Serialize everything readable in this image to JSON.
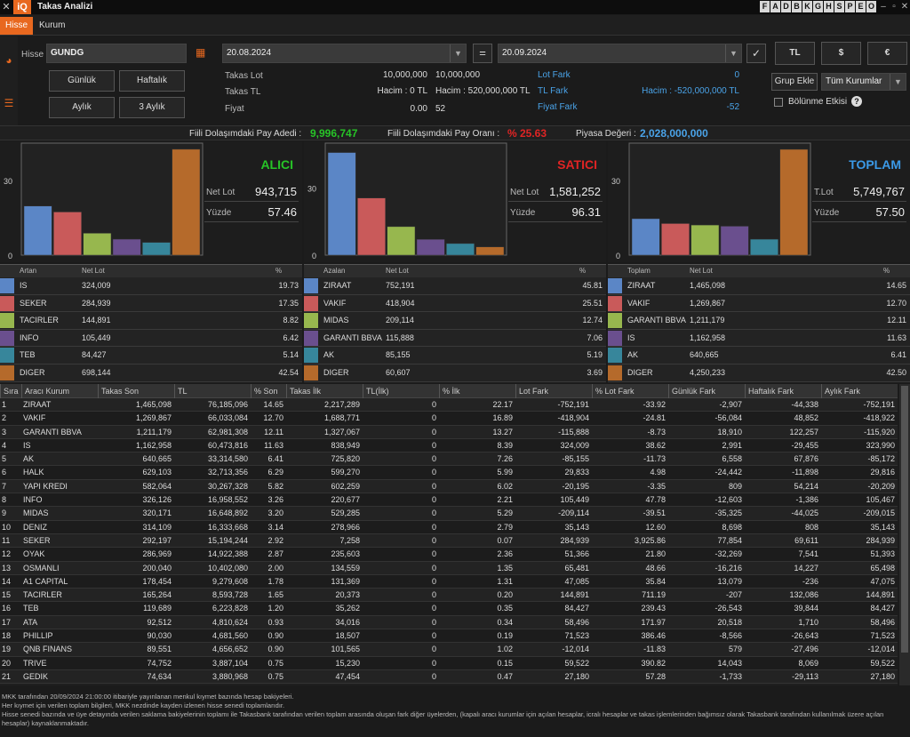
{
  "window": {
    "title": "Takas Analizi",
    "close": "✕",
    "logo": "iQ",
    "letters": [
      "F",
      "A",
      "D",
      "B",
      "K",
      "G",
      "H",
      "S",
      "P",
      "E",
      "O"
    ]
  },
  "tabs": [
    "Hisse",
    "Kurum"
  ],
  "form": {
    "hisse_label": "Hisse",
    "hisse_value": "GUNDG",
    "date_from": "20.08.2024",
    "date_to": "20.09.2024",
    "equals": "=",
    "check": "✓",
    "cur_tl": "TL",
    "cur_usd": "$",
    "cur_eur": "€"
  },
  "period_buttons": [
    "Günlük",
    "Haftalık",
    "Aylık",
    "3 Aylık"
  ],
  "summary": {
    "takas_lot_label": "Takas Lot",
    "takas_tl_label": "Takas TL",
    "fiyat_label": "Fiyat",
    "lot_v1": "10,000,000",
    "lot_v2": "10,000,000",
    "hacim1": "Hacim : 0 TL",
    "hacim2": "Hacim : 520,000,000 TL",
    "fiyat1": "0.00",
    "fiyat2": "52",
    "lot_fark_label": "Lot Fark",
    "lot_fark": "0",
    "tl_fark_label": "TL Fark",
    "tl_fark": "Hacim : -520,000,000 TL",
    "fiyat_fark_label": "Fiyat Fark",
    "fiyat_fark": "-52"
  },
  "right_controls": {
    "grup_ekle": "Grup Ekle",
    "kurum_select": "Tüm Kurumlar",
    "bolunme": "Bölünme Etkisi"
  },
  "stats": {
    "pay_adedi_label": "Fiili Dolaşımdaki Pay Adedi :",
    "pay_adedi": "9,996,747",
    "pay_orani_label": "Fiili Dolaşımdaki Pay Oranı :",
    "pay_orani": "% 25.63",
    "piyasa_label": "Piyasa Değeri :",
    "piyasa": "2,028,000,000"
  },
  "colors": {
    "accent": "#e8681f",
    "green": "#27c427",
    "red": "#e02424",
    "blue": "#3b9ae8",
    "palette": [
      "#5b86c6",
      "#c95a5a",
      "#97b74e",
      "#6a4f8e",
      "#37869b",
      "#b56a2b"
    ]
  },
  "chart_data": [
    {
      "type": "bar",
      "title": "ALICI",
      "categories": [
        "IS",
        "SEKER",
        "TACIRLER",
        "INFO",
        "TEB",
        "DIGER"
      ],
      "values": [
        19.73,
        17.35,
        8.82,
        6.42,
        5.14,
        42.54
      ],
      "ylim": [
        0,
        45
      ],
      "yticks": [
        "30",
        "0"
      ],
      "stat1_label": "Net Lot",
      "stat1": "943,715",
      "stat2_label": "Yüzde",
      "stat2": "57.46"
    },
    {
      "type": "bar",
      "title": "SATICI",
      "categories": [
        "ZIRAAT",
        "VAKIF",
        "MIDAS",
        "GARANTI BBVA",
        "AK",
        "DIGER"
      ],
      "values": [
        45.81,
        25.51,
        12.74,
        7.06,
        5.19,
        3.69
      ],
      "ylim": [
        0,
        50
      ],
      "yticks": [
        "30",
        "0"
      ],
      "stat1_label": "Net Lot",
      "stat1": "1,581,252",
      "stat2_label": "Yüzde",
      "stat2": "96.31"
    },
    {
      "type": "bar",
      "title": "TOPLAM",
      "categories": [
        "ZIRAAT",
        "VAKIF",
        "GARANTI BBVA",
        "IS",
        "AK",
        "DIGER"
      ],
      "values": [
        14.65,
        12.7,
        12.11,
        11.63,
        6.41,
        42.5
      ],
      "ylim": [
        0,
        45
      ],
      "yticks": [
        "30",
        "0"
      ],
      "stat1_label": "T.Lot",
      "stat1": "5,749,767",
      "stat2_label": "Yüzde",
      "stat2": "57.50"
    }
  ],
  "small_tables": [
    {
      "h1": "Artan",
      "h2": "Net Lot",
      "h3": "%",
      "rows": [
        [
          "IS",
          "324,009",
          "19.73"
        ],
        [
          "SEKER",
          "284,939",
          "17.35"
        ],
        [
          "TACIRLER",
          "144,891",
          "8.82"
        ],
        [
          "INFO",
          "105,449",
          "6.42"
        ],
        [
          "TEB",
          "84,427",
          "5.14"
        ],
        [
          "DIGER",
          "698,144",
          "42.54"
        ]
      ]
    },
    {
      "h1": "Azalan",
      "h2": "Net Lot",
      "h3": "%",
      "rows": [
        [
          "ZIRAAT",
          "752,191",
          "45.81"
        ],
        [
          "VAKIF",
          "418,904",
          "25.51"
        ],
        [
          "MIDAS",
          "209,114",
          "12.74"
        ],
        [
          "GARANTI BBVA",
          "115,888",
          "7.06"
        ],
        [
          "AK",
          "85,155",
          "5.19"
        ],
        [
          "DIGER",
          "60,607",
          "3.69"
        ]
      ]
    },
    {
      "h1": "Toplam",
      "h2": "Net Lot",
      "h3": "%",
      "rows": [
        [
          "ZIRAAT",
          "1,465,098",
          "14.65"
        ],
        [
          "VAKIF",
          "1,269,867",
          "12.70"
        ],
        [
          "GARANTI BBVA",
          "1,211,179",
          "12.11"
        ],
        [
          "IS",
          "1,162,958",
          "11.63"
        ],
        [
          "AK",
          "640,665",
          "6.41"
        ],
        [
          "DIGER",
          "4,250,233",
          "42.50"
        ]
      ]
    }
  ],
  "main_table": {
    "headers": [
      "Sıra",
      "Aracı Kurum",
      "Takas Son",
      "TL",
      "% Son",
      "Takas İlk",
      "TL(İlk)",
      "% İlk",
      "Lot Fark",
      "% Lot Fark",
      "Günlük Fark",
      "Haftalık Fark",
      "Aylık Fark"
    ],
    "rows": [
      [
        "1",
        "ZIRAAT",
        "1,465,098",
        "76,185,096",
        "14.65",
        "2,217,289",
        "0",
        "22.17",
        "-752,191",
        "-33.92",
        "-2,907",
        "-44,338",
        "-752,191"
      ],
      [
        "2",
        "VAKIF",
        "1,269,867",
        "66,033,084",
        "12.70",
        "1,688,771",
        "0",
        "16.89",
        "-418,904",
        "-24.81",
        "-56,084",
        "48,852",
        "-418,922"
      ],
      [
        "3",
        "GARANTI BBVA",
        "1,211,179",
        "62,981,308",
        "12.11",
        "1,327,067",
        "0",
        "13.27",
        "-115,888",
        "-8.73",
        "18,910",
        "122,257",
        "-115,920"
      ],
      [
        "4",
        "IS",
        "1,162,958",
        "60,473,816",
        "11.63",
        "838,949",
        "0",
        "8.39",
        "324,009",
        "38.62",
        "2,991",
        "-29,455",
        "323,990"
      ],
      [
        "5",
        "AK",
        "640,665",
        "33,314,580",
        "6.41",
        "725,820",
        "0",
        "7.26",
        "-85,155",
        "-11.73",
        "6,558",
        "67,876",
        "-85,172"
      ],
      [
        "6",
        "HALK",
        "629,103",
        "32,713,356",
        "6.29",
        "599,270",
        "0",
        "5.99",
        "29,833",
        "4.98",
        "-24,442",
        "-11,898",
        "29,816"
      ],
      [
        "7",
        "YAPI KREDI",
        "582,064",
        "30,267,328",
        "5.82",
        "602,259",
        "0",
        "6.02",
        "-20,195",
        "-3.35",
        "809",
        "54,214",
        "-20,209"
      ],
      [
        "8",
        "INFO",
        "326,126",
        "16,958,552",
        "3.26",
        "220,677",
        "0",
        "2.21",
        "105,449",
        "47.78",
        "-12,603",
        "-1,386",
        "105,467"
      ],
      [
        "9",
        "MIDAS",
        "320,171",
        "16,648,892",
        "3.20",
        "529,285",
        "0",
        "5.29",
        "-209,114",
        "-39.51",
        "-35,325",
        "-44,025",
        "-209,015"
      ],
      [
        "10",
        "DENIZ",
        "314,109",
        "16,333,668",
        "3.14",
        "278,966",
        "0",
        "2.79",
        "35,143",
        "12.60",
        "8,698",
        "808",
        "35,143"
      ],
      [
        "11",
        "SEKER",
        "292,197",
        "15,194,244",
        "2.92",
        "7,258",
        "0",
        "0.07",
        "284,939",
        "3,925.86",
        "77,854",
        "69,611",
        "284,939"
      ],
      [
        "12",
        "OYAK",
        "286,969",
        "14,922,388",
        "2.87",
        "235,603",
        "0",
        "2.36",
        "51,366",
        "21.80",
        "-32,269",
        "7,541",
        "51,393"
      ],
      [
        "13",
        "OSMANLI",
        "200,040",
        "10,402,080",
        "2.00",
        "134,559",
        "0",
        "1.35",
        "65,481",
        "48.66",
        "-16,216",
        "14,227",
        "65,498"
      ],
      [
        "14",
        "A1 CAPITAL",
        "178,454",
        "9,279,608",
        "1.78",
        "131,369",
        "0",
        "1.31",
        "47,085",
        "35.84",
        "13,079",
        "-236",
        "47,075"
      ],
      [
        "15",
        "TACIRLER",
        "165,264",
        "8,593,728",
        "1.65",
        "20,373",
        "0",
        "0.20",
        "144,891",
        "711.19",
        "-207",
        "132,086",
        "144,891"
      ],
      [
        "16",
        "TEB",
        "119,689",
        "6,223,828",
        "1.20",
        "35,262",
        "0",
        "0.35",
        "84,427",
        "239.43",
        "-26,543",
        "39,844",
        "84,427"
      ],
      [
        "17",
        "ATA",
        "92,512",
        "4,810,624",
        "0.93",
        "34,016",
        "0",
        "0.34",
        "58,496",
        "171.97",
        "20,518",
        "1,710",
        "58,496"
      ],
      [
        "18",
        "PHILLIP",
        "90,030",
        "4,681,560",
        "0.90",
        "18,507",
        "0",
        "0.19",
        "71,523",
        "386.46",
        "-8,566",
        "-26,643",
        "71,523"
      ],
      [
        "19",
        "QNB FINANS",
        "89,551",
        "4,656,652",
        "0.90",
        "101,565",
        "0",
        "1.02",
        "-12,014",
        "-11.83",
        "579",
        "-27,496",
        "-12,014"
      ],
      [
        "20",
        "TRIVE",
        "74,752",
        "3,887,104",
        "0.75",
        "15,230",
        "0",
        "0.15",
        "59,522",
        "390.82",
        "14,043",
        "8,069",
        "59,522"
      ],
      [
        "21",
        "GEDIK",
        "74,634",
        "3,880,968",
        "0.75",
        "47,454",
        "0",
        "0.47",
        "27,180",
        "57.28",
        "-1,733",
        "-29,113",
        "27,180"
      ]
    ]
  },
  "footer": [
    "MKK tarafından 20/09/2024 21:00:00 itibariyle yayınlanan menkul kıymet bazında hesap bakiyeleri.",
    "Her kıymet için verilen toplam bilgileri, MKK nezdinde kayden izlenen hisse senedi toplamlarıdır.",
    "Hisse senedi bazında ve üye detayında verilen saklama bakiyelerinin toplamı ile Takasbank tarafından verilen toplam arasında oluşan fark diğer üyelerden, (kapalı aracı kurumlar için açılan hesaplar, icralı hesaplar ve takas işlemlerinden bağımsız olarak Takasbank tarafından kullanılmak üzere açılan hesaplar) kaynaklanmaktadır."
  ]
}
